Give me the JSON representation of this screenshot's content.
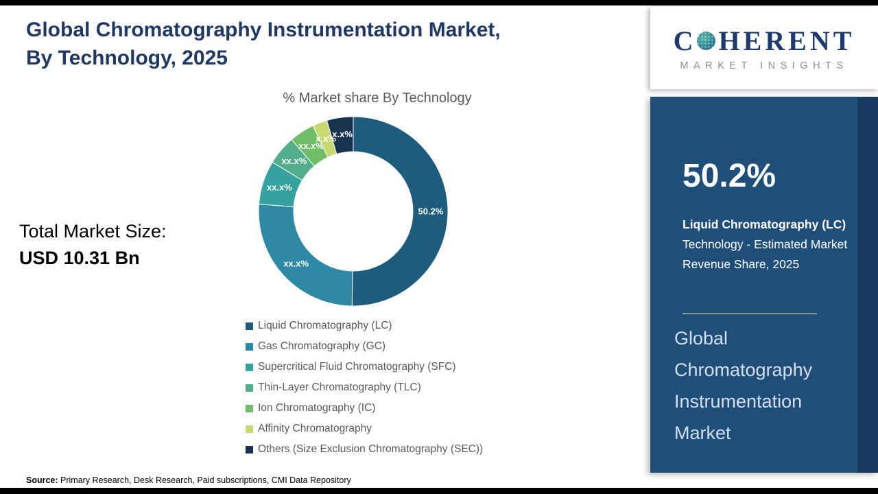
{
  "header": {
    "title": "Global Chromatography Instrumentation Market,\nBy Technology, 2025"
  },
  "total": {
    "label": "Total Market Size:",
    "value": "USD 10.31 Bn"
  },
  "source": {
    "label": "Source:",
    "text": " Primary Research, Desk Research, Paid subscriptions, CMI Data Repository"
  },
  "sidebar": {
    "logo": {
      "name_start": "C",
      "name_end": "HERENT",
      "tagline": "MARKET INSIGHTS"
    },
    "stat_value": "50.2%",
    "stat_label_bold": "Liquid Chromatography (LC)",
    "stat_label_rest": " Technology - Estimated Market Revenue Share, 2025",
    "panel_title": "Global Chromatography Instrumentation Market"
  },
  "chart_data": {
    "type": "pie",
    "subtype": "donut",
    "title": "% Market share By Technology",
    "categories": [
      "Liquid Chromatography (LC)",
      "Gas Chromatography (GC)",
      "Supercritical Fluid Chromatography (SFC)",
      "Thin-Layer Chromatography (TLC)",
      "Ion Chromatography (IC)",
      "Affinity Chromatography",
      " Others (Size Exclusion Chromatography (SEC))"
    ],
    "labels": [
      "50.2%",
      "xx.x%",
      "xx.x%",
      "xx.x%",
      "xx.x%",
      "x.x%",
      "x.x%"
    ],
    "values": [
      50.2,
      26.0,
      7.5,
      5.0,
      4.3,
      2.5,
      4.5
    ],
    "colors": [
      "#1e5c7d",
      "#2d89a5",
      "#36a29f",
      "#52ae89",
      "#6fbd67",
      "#c6da6f",
      "#1a3350"
    ],
    "legend_position": "bottom"
  }
}
